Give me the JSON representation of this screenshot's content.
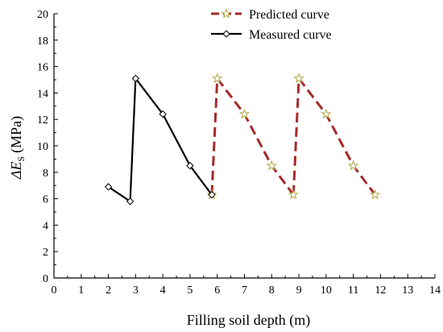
{
  "chart_data": {
    "type": "line",
    "title": "",
    "xlabel": "Filling soil depth (m)",
    "ylabel_main": "ΔE",
    "ylabel_sub": "S",
    "ylabel_unit": "(MPa)",
    "xlim": [
      0,
      14
    ],
    "ylim": [
      0,
      20
    ],
    "xticks": [
      0,
      1,
      2,
      3,
      4,
      5,
      6,
      7,
      8,
      9,
      10,
      11,
      12,
      13,
      14
    ],
    "yticks": [
      0,
      2,
      4,
      6,
      8,
      10,
      12,
      14,
      16,
      18,
      20
    ],
    "grid": false,
    "legend_position": "top-right",
    "series": [
      {
        "name": "Predicted curve",
        "color": "#A52A2A",
        "line_style": "dashed",
        "marker": "star",
        "marker_color": "#B5A642",
        "segments": [
          {
            "x": [
              5.8,
              6.0
            ],
            "y": [
              6.3,
              15.1
            ]
          },
          {
            "x": [
              6.0,
              7.0,
              8.0,
              8.8
            ],
            "y": [
              15.1,
              12.4,
              8.5,
              6.3
            ]
          },
          {
            "x": [
              8.8,
              9.0
            ],
            "y": [
              6.3,
              15.1
            ]
          },
          {
            "x": [
              9.0,
              10.0,
              11.0,
              11.8
            ],
            "y": [
              15.1,
              12.4,
              8.5,
              6.3
            ]
          }
        ],
        "points": {
          "x": [
            5.8,
            6.0,
            7.0,
            8.0,
            8.8,
            9.0,
            10.0,
            11.0,
            11.8
          ],
          "y": [
            6.3,
            15.1,
            12.4,
            8.5,
            6.3,
            15.1,
            12.4,
            8.5,
            6.3
          ]
        }
      },
      {
        "name": "Measured curve",
        "color": "#000000",
        "line_style": "solid",
        "marker": "diamond",
        "x": [
          2.0,
          2.8,
          3.0,
          4.0,
          5.0,
          5.8
        ],
        "y": [
          6.9,
          5.8,
          15.1,
          12.4,
          8.5,
          6.3
        ]
      }
    ]
  }
}
